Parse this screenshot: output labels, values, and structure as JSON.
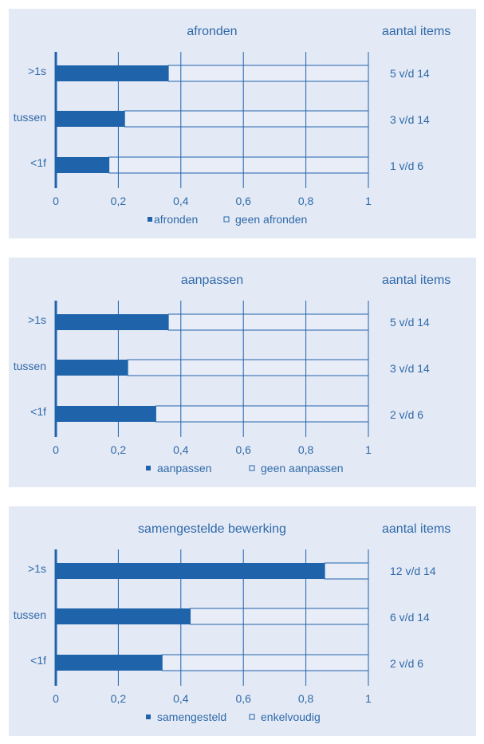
{
  "colors": {
    "bar_fill": "#1f64ab",
    "bar_empty": "#e8edf8",
    "text": "#2e6aa8",
    "axis": "#1f64ab",
    "grid": "#1f64ab",
    "panel_bg": "#e4e9f6"
  },
  "side_header": "aantal items",
  "chart_data": [
    {
      "type": "bar",
      "orientation": "horizontal",
      "stacked": true,
      "title": "afronden",
      "categories": [
        ">1s",
        "tussen",
        "<1f"
      ],
      "series": [
        {
          "name": "afronden",
          "values": [
            0.36,
            0.22,
            0.17
          ]
        },
        {
          "name": "geen afronden",
          "values": [
            0.64,
            0.78,
            0.83
          ]
        }
      ],
      "xlim": [
        0,
        1
      ],
      "xticks": [
        "0",
        "0,2",
        "0,4",
        "0,6",
        "0,8",
        "1"
      ],
      "grid": true,
      "legend_position": "bottom",
      "item_counts": [
        "5 v/d 14",
        "3 v/d 14",
        "1 v/d 6"
      ]
    },
    {
      "type": "bar",
      "orientation": "horizontal",
      "stacked": true,
      "title": "aanpassen",
      "categories": [
        ">1s",
        "tussen",
        "<1f"
      ],
      "series": [
        {
          "name": "aanpassen",
          "values": [
            0.36,
            0.23,
            0.32
          ]
        },
        {
          "name": "geen aanpassen",
          "values": [
            0.64,
            0.77,
            0.68
          ]
        }
      ],
      "xlim": [
        0,
        1
      ],
      "xticks": [
        "0",
        "0,2",
        "0,4",
        "0,6",
        "0,8",
        "1"
      ],
      "grid": true,
      "legend_position": "bottom",
      "item_counts": [
        "5 v/d 14",
        "3 v/d 14",
        "2 v/d 6"
      ]
    },
    {
      "type": "bar",
      "orientation": "horizontal",
      "stacked": true,
      "title": "samengestelde bewerking",
      "categories": [
        ">1s",
        "tussen",
        "<1f"
      ],
      "series": [
        {
          "name": "samengesteld",
          "values": [
            0.86,
            0.43,
            0.34
          ]
        },
        {
          "name": "enkelvoudig",
          "values": [
            0.14,
            0.57,
            0.66
          ]
        }
      ],
      "xlim": [
        0,
        1
      ],
      "xticks": [
        "0",
        "0,2",
        "0,4",
        "0,6",
        "0,8",
        "1"
      ],
      "grid": true,
      "legend_position": "bottom",
      "item_counts": [
        "12 v/d 14",
        "6 v/d 14",
        "2 v/d 6"
      ]
    }
  ]
}
